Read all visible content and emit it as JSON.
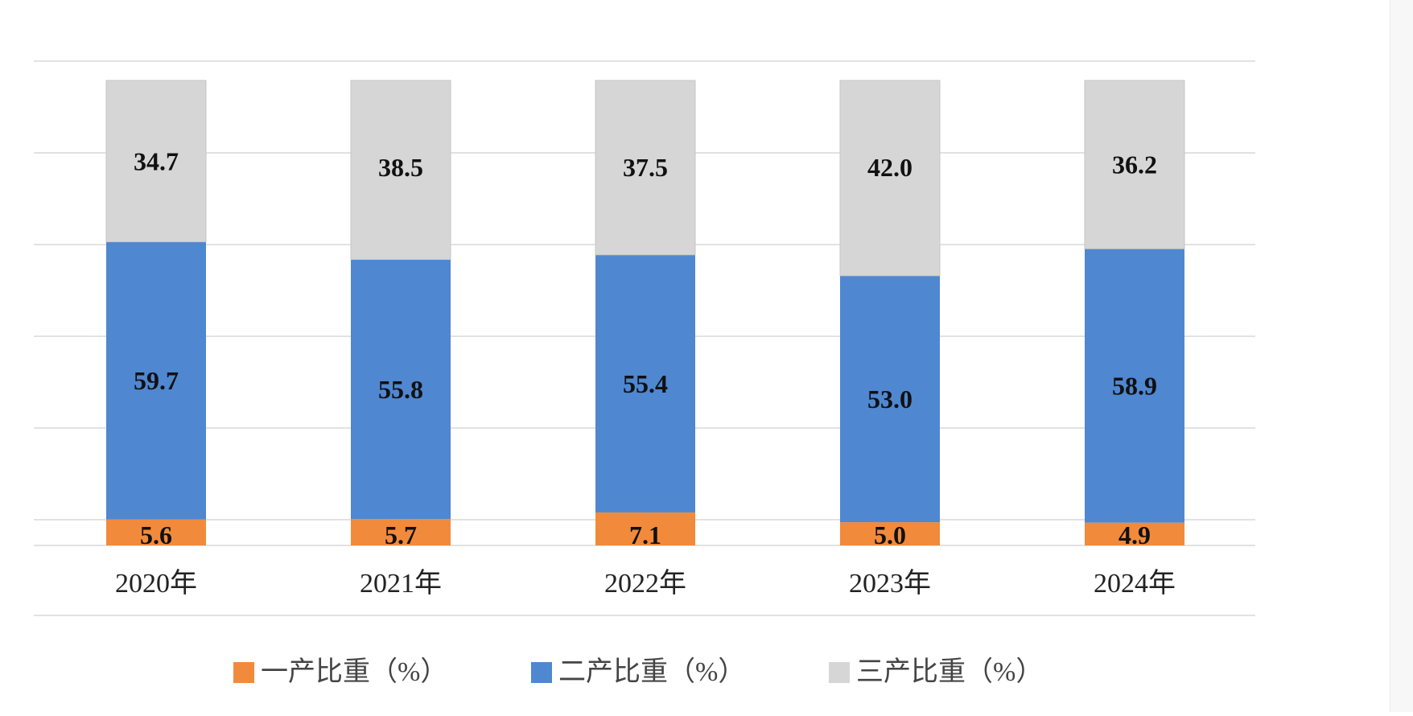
{
  "chart_data": {
    "type": "bar",
    "stacked": true,
    "categories": [
      "2020年",
      "2021年",
      "2022年",
      "2023年",
      "2024年"
    ],
    "series": [
      {
        "name": "一产比重（%）",
        "color": "#f28a3b",
        "values": [
          5.6,
          5.7,
          7.1,
          5.0,
          4.9
        ]
      },
      {
        "name": "二产比重（%）",
        "color": "#4f87d1",
        "values": [
          59.7,
          55.8,
          55.4,
          53.0,
          58.9
        ]
      },
      {
        "name": "三产比重（%）",
        "color": "#d6d6d6",
        "values": [
          34.7,
          38.5,
          37.5,
          42.0,
          36.2
        ]
      }
    ],
    "ylim": [
      0,
      100
    ],
    "grid": true,
    "legend_position": "bottom",
    "data_labels": true
  }
}
